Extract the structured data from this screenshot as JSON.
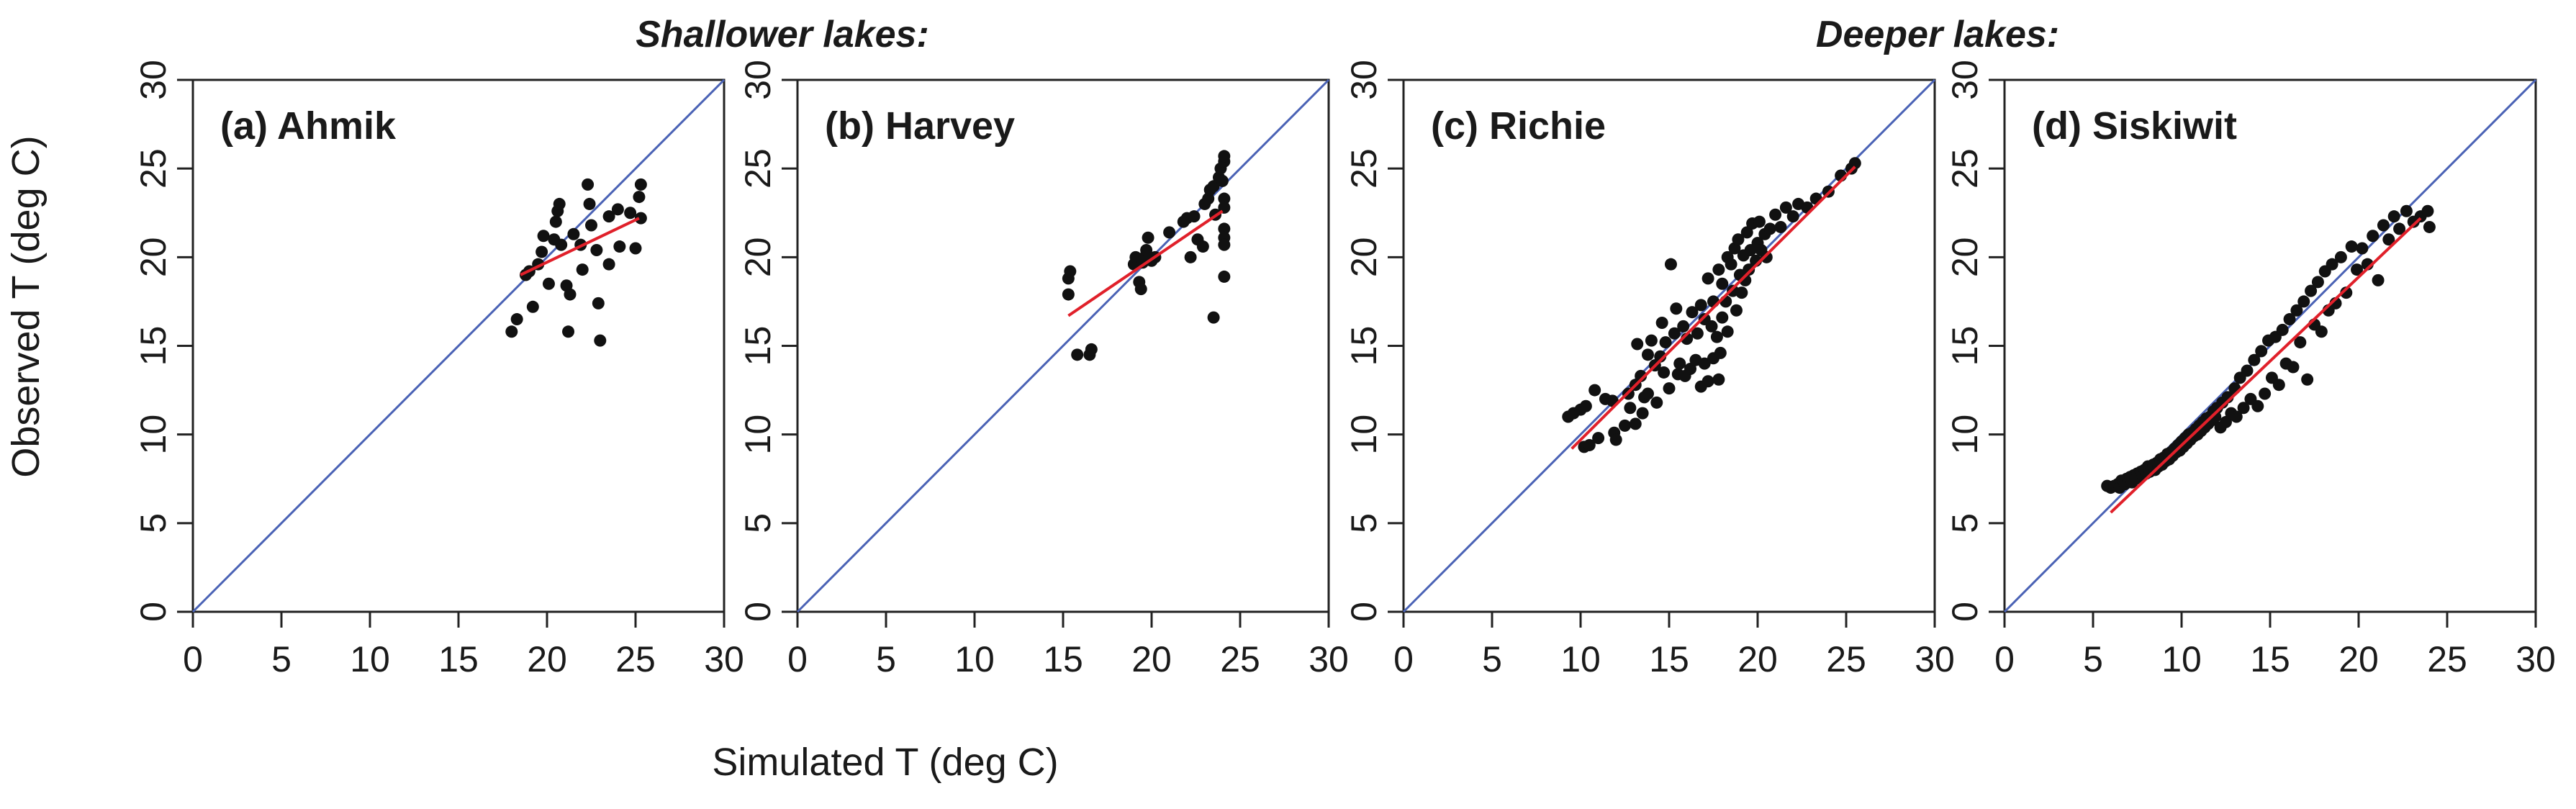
{
  "figure": {
    "group_labels": {
      "shallow": "Shallower lakes:",
      "deep": "Deeper lakes:"
    },
    "xlabel": "Simulated T (deg C)",
    "ylabel": "Observed T (deg C)",
    "colors": {
      "one_to_one": "#4a62b5",
      "fit": "#e0202a",
      "points": "#111111"
    }
  },
  "chart_data": [
    {
      "type": "scatter",
      "title": "(a) Ahmik",
      "xlim": [
        0,
        30
      ],
      "ylim": [
        0,
        30
      ],
      "xticks": [
        0,
        5,
        10,
        15,
        20,
        25,
        30
      ],
      "yticks": [
        0,
        5,
        10,
        15,
        20,
        25,
        30
      ],
      "fit_line": {
        "x": [
          18.5,
          25.2
        ],
        "y": [
          19.0,
          22.2
        ]
      },
      "points": [
        [
          18.0,
          15.8
        ],
        [
          18.3,
          16.5
        ],
        [
          18.8,
          19.0
        ],
        [
          19.0,
          19.2
        ],
        [
          19.2,
          17.2
        ],
        [
          19.5,
          19.6
        ],
        [
          19.7,
          20.3
        ],
        [
          19.8,
          21.2
        ],
        [
          20.1,
          18.5
        ],
        [
          20.4,
          21.0
        ],
        [
          20.5,
          22.0
        ],
        [
          20.6,
          22.6
        ],
        [
          20.7,
          23.0
        ],
        [
          20.8,
          20.7
        ],
        [
          21.1,
          18.4
        ],
        [
          21.2,
          15.8
        ],
        [
          21.3,
          17.9
        ],
        [
          21.5,
          21.3
        ],
        [
          21.9,
          20.7
        ],
        [
          22.0,
          19.3
        ],
        [
          22.3,
          24.1
        ],
        [
          22.4,
          23.0
        ],
        [
          22.5,
          21.8
        ],
        [
          22.8,
          20.4
        ],
        [
          22.9,
          17.4
        ],
        [
          23.0,
          15.3
        ],
        [
          23.5,
          22.3
        ],
        [
          23.5,
          19.6
        ],
        [
          24.0,
          22.7
        ],
        [
          24.1,
          20.6
        ],
        [
          24.7,
          22.5
        ],
        [
          25.0,
          20.5
        ],
        [
          25.2,
          23.4
        ],
        [
          25.3,
          24.1
        ],
        [
          25.3,
          22.2
        ]
      ]
    },
    {
      "type": "scatter",
      "title": "(b) Harvey",
      "xlim": [
        0,
        30
      ],
      "ylim": [
        0,
        30
      ],
      "xticks": [
        0,
        5,
        10,
        15,
        20,
        25,
        30
      ],
      "yticks": [
        0,
        5,
        10,
        15,
        20,
        25,
        30
      ],
      "fit_line": {
        "x": [
          15.3,
          24.0
        ],
        "y": [
          16.7,
          22.6
        ]
      },
      "points": [
        [
          15.3,
          17.9
        ],
        [
          15.3,
          18.8
        ],
        [
          15.4,
          19.2
        ],
        [
          15.8,
          14.5
        ],
        [
          16.5,
          14.5
        ],
        [
          16.6,
          14.8
        ],
        [
          19.0,
          19.6
        ],
        [
          19.1,
          20.0
        ],
        [
          19.3,
          18.6
        ],
        [
          19.4,
          18.2
        ],
        [
          19.5,
          19.7
        ],
        [
          19.6,
          20.0
        ],
        [
          19.7,
          20.4
        ],
        [
          19.8,
          21.1
        ],
        [
          20.0,
          19.8
        ],
        [
          20.2,
          20.0
        ],
        [
          21.0,
          21.4
        ],
        [
          21.8,
          22.0
        ],
        [
          22.0,
          22.2
        ],
        [
          22.2,
          20.0
        ],
        [
          22.4,
          22.3
        ],
        [
          22.6,
          21.0
        ],
        [
          22.9,
          20.6
        ],
        [
          23.0,
          23.0
        ],
        [
          23.2,
          23.3
        ],
        [
          23.3,
          23.8
        ],
        [
          23.5,
          24.0
        ],
        [
          23.5,
          16.6
        ],
        [
          23.6,
          22.4
        ],
        [
          23.8,
          24.5
        ],
        [
          23.9,
          25.0
        ],
        [
          24.0,
          24.3
        ],
        [
          24.1,
          25.4
        ],
        [
          24.1,
          25.7
        ],
        [
          24.1,
          23.3
        ],
        [
          24.1,
          22.8
        ],
        [
          24.1,
          21.6
        ],
        [
          24.1,
          21.1
        ],
        [
          24.1,
          20.7
        ],
        [
          24.1,
          18.9
        ]
      ]
    },
    {
      "type": "scatter",
      "title": "(c) Richie",
      "xlim": [
        0,
        30
      ],
      "ylim": [
        0,
        30
      ],
      "xticks": [
        0,
        5,
        10,
        15,
        20,
        25,
        30
      ],
      "yticks": [
        0,
        5,
        10,
        15,
        20,
        25,
        30
      ],
      "fit_line": {
        "x": [
          9.5,
          25.5
        ],
        "y": [
          9.2,
          25.1
        ]
      },
      "points": [
        [
          9.3,
          11.0
        ],
        [
          9.6,
          11.2
        ],
        [
          10.0,
          11.4
        ],
        [
          10.2,
          9.3
        ],
        [
          10.3,
          11.6
        ],
        [
          10.5,
          9.4
        ],
        [
          10.8,
          12.5
        ],
        [
          11.0,
          9.8
        ],
        [
          11.4,
          12.0
        ],
        [
          11.8,
          11.9
        ],
        [
          11.9,
          10.1
        ],
        [
          12.0,
          9.7
        ],
        [
          12.5,
          10.5
        ],
        [
          12.8,
          11.5
        ],
        [
          12.7,
          12.3
        ],
        [
          13.1,
          12.8
        ],
        [
          13.1,
          10.6
        ],
        [
          13.2,
          15.1
        ],
        [
          13.4,
          13.3
        ],
        [
          13.5,
          11.2
        ],
        [
          13.6,
          12.1
        ],
        [
          13.8,
          14.5
        ],
        [
          13.8,
          12.3
        ],
        [
          14.0,
          15.3
        ],
        [
          14.2,
          13.9
        ],
        [
          14.3,
          11.8
        ],
        [
          14.5,
          14.4
        ],
        [
          14.6,
          16.3
        ],
        [
          14.7,
          13.5
        ],
        [
          14.8,
          15.2
        ],
        [
          15.0,
          12.6
        ],
        [
          15.1,
          19.6
        ],
        [
          15.3,
          15.7
        ],
        [
          15.4,
          17.1
        ],
        [
          15.5,
          13.4
        ],
        [
          15.6,
          14.0
        ],
        [
          15.8,
          16.1
        ],
        [
          15.9,
          13.3
        ],
        [
          16.0,
          15.4
        ],
        [
          16.2,
          13.7
        ],
        [
          16.3,
          16.9
        ],
        [
          16.5,
          14.2
        ],
        [
          16.6,
          15.7
        ],
        [
          16.8,
          17.3
        ],
        [
          16.8,
          12.7
        ],
        [
          17.0,
          14.0
        ],
        [
          17.0,
          16.5
        ],
        [
          17.2,
          13.0
        ],
        [
          17.2,
          18.8
        ],
        [
          17.4,
          16.1
        ],
        [
          17.5,
          14.3
        ],
        [
          17.5,
          17.5
        ],
        [
          17.7,
          15.5
        ],
        [
          17.8,
          19.3
        ],
        [
          17.8,
          13.1
        ],
        [
          17.9,
          14.6
        ],
        [
          18.0,
          16.6
        ],
        [
          18.0,
          18.5
        ],
        [
          18.2,
          17.5
        ],
        [
          18.3,
          20.0
        ],
        [
          18.3,
          15.8
        ],
        [
          18.5,
          19.6
        ],
        [
          18.6,
          18.1
        ],
        [
          18.7,
          20.5
        ],
        [
          18.8,
          17.0
        ],
        [
          18.9,
          21.0
        ],
        [
          19.0,
          19.0
        ],
        [
          19.1,
          18.0
        ],
        [
          19.2,
          20.1
        ],
        [
          19.3,
          18.7
        ],
        [
          19.4,
          21.4
        ],
        [
          19.5,
          19.3
        ],
        [
          19.6,
          20.4
        ],
        [
          19.7,
          21.9
        ],
        [
          19.9,
          19.8
        ],
        [
          20.0,
          20.8
        ],
        [
          20.1,
          22.0
        ],
        [
          20.2,
          20.4
        ],
        [
          20.4,
          21.3
        ],
        [
          20.5,
          20.0
        ],
        [
          20.7,
          21.6
        ],
        [
          21.0,
          22.4
        ],
        [
          21.3,
          21.7
        ],
        [
          21.6,
          22.8
        ],
        [
          22.0,
          22.3
        ],
        [
          22.3,
          23.0
        ],
        [
          22.8,
          22.8
        ],
        [
          23.3,
          23.3
        ],
        [
          24.0,
          23.7
        ],
        [
          24.7,
          24.6
        ],
        [
          25.3,
          25.0
        ],
        [
          25.5,
          25.3
        ]
      ]
    },
    {
      "type": "scatter",
      "title": "(d) Siskiwit",
      "xlim": [
        0,
        30
      ],
      "ylim": [
        0,
        30
      ],
      "xticks": [
        0,
        5,
        10,
        15,
        20,
        25,
        30
      ],
      "yticks": [
        0,
        5,
        10,
        15,
        20,
        25,
        30
      ],
      "fit_line": {
        "x": [
          6.0,
          23.5
        ],
        "y": [
          5.6,
          22.2
        ]
      },
      "points": [
        [
          5.8,
          7.1
        ],
        [
          6.0,
          7.0
        ],
        [
          6.2,
          7.1
        ],
        [
          6.4,
          7.2
        ],
        [
          6.5,
          7.0
        ],
        [
          6.6,
          7.4
        ],
        [
          6.7,
          7.3
        ],
        [
          6.8,
          7.2
        ],
        [
          6.9,
          7.5
        ],
        [
          7.0,
          7.4
        ],
        [
          7.1,
          7.6
        ],
        [
          7.2,
          7.3
        ],
        [
          7.3,
          7.7
        ],
        [
          7.4,
          7.5
        ],
        [
          7.5,
          7.8
        ],
        [
          7.6,
          7.6
        ],
        [
          7.7,
          7.9
        ],
        [
          7.8,
          7.7
        ],
        [
          7.9,
          8.0
        ],
        [
          8.0,
          7.8
        ],
        [
          8.1,
          8.2
        ],
        [
          8.2,
          7.9
        ],
        [
          8.3,
          8.1
        ],
        [
          8.4,
          8.3
        ],
        [
          8.5,
          8.0
        ],
        [
          8.6,
          8.4
        ],
        [
          8.7,
          8.2
        ],
        [
          8.8,
          8.6
        ],
        [
          8.9,
          8.3
        ],
        [
          9.0,
          8.7
        ],
        [
          9.1,
          8.5
        ],
        [
          9.2,
          8.9
        ],
        [
          9.3,
          8.6
        ],
        [
          9.4,
          9.0
        ],
        [
          9.5,
          8.8
        ],
        [
          9.6,
          9.2
        ],
        [
          9.7,
          9.0
        ],
        [
          9.8,
          9.4
        ],
        [
          9.9,
          9.1
        ],
        [
          10.0,
          9.6
        ],
        [
          10.1,
          9.3
        ],
        [
          10.2,
          9.8
        ],
        [
          10.3,
          9.5
        ],
        [
          10.4,
          10.0
        ],
        [
          10.5,
          9.7
        ],
        [
          10.6,
          10.1
        ],
        [
          10.7,
          9.9
        ],
        [
          10.8,
          10.3
        ],
        [
          10.9,
          10.0
        ],
        [
          11.0,
          10.5
        ],
        [
          11.1,
          10.2
        ],
        [
          11.2,
          10.7
        ],
        [
          11.3,
          10.4
        ],
        [
          11.4,
          10.9
        ],
        [
          11.5,
          10.6
        ],
        [
          11.6,
          11.0
        ],
        [
          11.7,
          10.8
        ],
        [
          11.8,
          11.3
        ],
        [
          11.9,
          11.0
        ],
        [
          12.0,
          11.5
        ],
        [
          12.2,
          10.4
        ],
        [
          12.3,
          11.8
        ],
        [
          12.5,
          10.7
        ],
        [
          12.6,
          12.1
        ],
        [
          12.8,
          11.2
        ],
        [
          13.0,
          12.6
        ],
        [
          13.1,
          11.0
        ],
        [
          13.3,
          13.2
        ],
        [
          13.5,
          11.5
        ],
        [
          13.7,
          13.6
        ],
        [
          13.9,
          12.0
        ],
        [
          14.1,
          14.2
        ],
        [
          14.3,
          11.6
        ],
        [
          14.5,
          14.7
        ],
        [
          14.7,
          12.3
        ],
        [
          14.9,
          15.3
        ],
        [
          15.1,
          13.2
        ],
        [
          15.3,
          15.5
        ],
        [
          15.5,
          12.8
        ],
        [
          15.7,
          15.9
        ],
        [
          15.9,
          14.0
        ],
        [
          16.1,
          16.5
        ],
        [
          16.3,
          13.8
        ],
        [
          16.5,
          17.0
        ],
        [
          16.7,
          15.2
        ],
        [
          16.9,
          17.5
        ],
        [
          17.1,
          13.1
        ],
        [
          17.3,
          18.1
        ],
        [
          17.5,
          16.2
        ],
        [
          17.7,
          18.6
        ],
        [
          17.9,
          15.8
        ],
        [
          18.1,
          19.2
        ],
        [
          18.3,
          17.0
        ],
        [
          18.5,
          19.6
        ],
        [
          18.7,
          17.4
        ],
        [
          19.0,
          20.0
        ],
        [
          19.3,
          18.0
        ],
        [
          19.6,
          20.6
        ],
        [
          19.9,
          19.3
        ],
        [
          20.2,
          20.5
        ],
        [
          20.5,
          19.6
        ],
        [
          20.8,
          21.2
        ],
        [
          21.1,
          18.7
        ],
        [
          21.4,
          21.8
        ],
        [
          21.7,
          21.0
        ],
        [
          22.0,
          22.3
        ],
        [
          22.3,
          21.6
        ],
        [
          22.7,
          22.6
        ],
        [
          23.1,
          22.0
        ],
        [
          23.5,
          22.3
        ],
        [
          23.9,
          22.6
        ],
        [
          24.0,
          21.7
        ]
      ]
    }
  ]
}
